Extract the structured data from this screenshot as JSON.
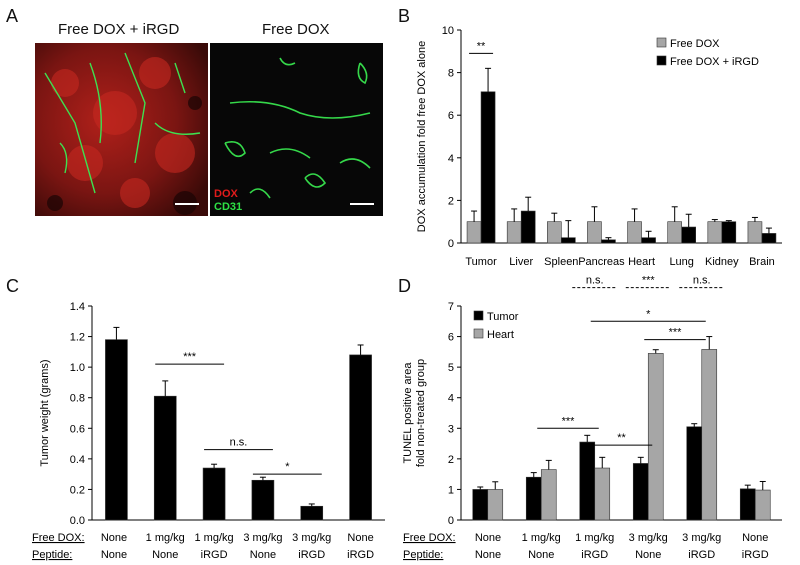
{
  "panelA": {
    "letter": "A",
    "image_left": {
      "title": "Free DOX + iRGD"
    },
    "image_right": {
      "title": "Free DOX",
      "legend_dox": "DOX",
      "legend_cd31": "CD31",
      "color_dox": "#e01b1b",
      "color_cd31": "#2ee045"
    }
  },
  "letters": {
    "B": "B",
    "C": "C",
    "D": "D"
  },
  "chart_data": [
    {
      "id": "B",
      "type": "bar",
      "ylabel": "DOX accumulation fold free DOX alone",
      "xlabel": "",
      "ylim": [
        0,
        10
      ],
      "yticks": [
        0,
        2,
        4,
        6,
        8,
        10
      ],
      "categories": [
        "Tumor",
        "Liver",
        "Spleen",
        "Pancreas",
        "Heart",
        "Lung",
        "Kidney",
        "Brain"
      ],
      "legend_position": "top-right",
      "series": [
        {
          "name": "Free DOX",
          "color": "#a6a6a6",
          "values": [
            1.0,
            1.0,
            1.0,
            1.0,
            1.0,
            1.0,
            1.0,
            1.0
          ],
          "errors": [
            0.5,
            0.6,
            0.4,
            0.7,
            0.6,
            0.7,
            0.1,
            0.2
          ]
        },
        {
          "name": "Free DOX + iRGD",
          "color": "#000000",
          "values": [
            7.1,
            1.5,
            0.25,
            0.15,
            0.25,
            0.75,
            1.0,
            0.45
          ],
          "errors": [
            1.1,
            0.65,
            0.8,
            0.1,
            0.3,
            0.6,
            0.05,
            0.25
          ]
        }
      ],
      "annotations": [
        {
          "label": "**",
          "from": 0,
          "to": 0
        }
      ]
    },
    {
      "id": "C",
      "type": "bar",
      "ylabel": "Tumor weight (grams)",
      "xlabel": "",
      "ylim": [
        0,
        1.4
      ],
      "yticks": [
        "0.0",
        "0.2",
        "0.4",
        "0.6",
        "0.8",
        "1.0",
        "1.2",
        "1.4"
      ],
      "row_labels": [
        "Free DOX:",
        "Peptide:"
      ],
      "categories": [
        {
          "dox": "None",
          "peptide": "None"
        },
        {
          "dox": "1 mg/kg",
          "peptide": "None"
        },
        {
          "dox": "1 mg/kg",
          "peptide": "iRGD"
        },
        {
          "dox": "3 mg/kg",
          "peptide": "None"
        },
        {
          "dox": "3 mg/kg",
          "peptide": "iRGD"
        },
        {
          "dox": "None",
          "peptide": "iRGD"
        }
      ],
      "series": [
        {
          "color": "#000000",
          "values": [
            1.18,
            0.81,
            0.34,
            0.26,
            0.09,
            1.08
          ],
          "errors": [
            0.08,
            0.1,
            0.025,
            0.02,
            0.015,
            0.065
          ]
        }
      ],
      "annotations": [
        {
          "label": "***",
          "from": 1,
          "to": 2,
          "y": 1.02
        },
        {
          "label": "n.s.",
          "from": 2,
          "to": 3,
          "y": 0.46
        },
        {
          "label": "*",
          "from": 3,
          "to": 4,
          "y": 0.3
        }
      ]
    },
    {
      "id": "D",
      "type": "bar",
      "ylabel": "TUNEL positive area fold non-treated group",
      "xlabel": "",
      "ylim": [
        0,
        7
      ],
      "yticks": [
        0,
        1,
        2,
        3,
        4,
        5,
        6,
        7
      ],
      "legend_position": "top-left",
      "row_labels": [
        "Free DOX:",
        "Peptide:"
      ],
      "categories": [
        {
          "dox": "None",
          "peptide": "None"
        },
        {
          "dox": "1 mg/kg",
          "peptide": "None"
        },
        {
          "dox": "1 mg/kg",
          "peptide": "iRGD"
        },
        {
          "dox": "3 mg/kg",
          "peptide": "None"
        },
        {
          "dox": "3 mg/kg",
          "peptide": "iRGD"
        },
        {
          "dox": "None",
          "peptide": "iRGD"
        }
      ],
      "series": [
        {
          "name": "Tumor",
          "color": "#000000",
          "values": [
            1.0,
            1.4,
            2.55,
            1.85,
            3.05,
            1.02
          ],
          "errors": [
            0.08,
            0.15,
            0.22,
            0.2,
            0.1,
            0.12
          ]
        },
        {
          "name": "Heart",
          "color": "#a6a6a6",
          "values": [
            1.0,
            1.65,
            1.7,
            5.45,
            5.58,
            0.98
          ],
          "errors": [
            0.25,
            0.3,
            0.35,
            0.12,
            0.42,
            0.28
          ]
        }
      ],
      "annotations": [
        {
          "label": "***",
          "from": 1,
          "to": 2,
          "y": 3.0,
          "style": "solid"
        },
        {
          "label": "**",
          "from": 2,
          "to": 3,
          "y": 2.45,
          "style": "solid"
        },
        {
          "label": "*",
          "from": 2,
          "to": 4,
          "y": 6.5,
          "style": "solid"
        },
        {
          "label": "***",
          "from": 3,
          "to": 4,
          "y": 5.9,
          "style": "solid"
        },
        {
          "label": "n.s.",
          "from": 2,
          "to": 2,
          "y": 7.6,
          "style": "dashed"
        },
        {
          "label": "***",
          "from": 3,
          "to": 3,
          "y": 7.6,
          "style": "dashed"
        },
        {
          "label": "n.s.",
          "from": 4,
          "to": 4,
          "y": 7.6,
          "style": "dashed"
        }
      ]
    }
  ]
}
